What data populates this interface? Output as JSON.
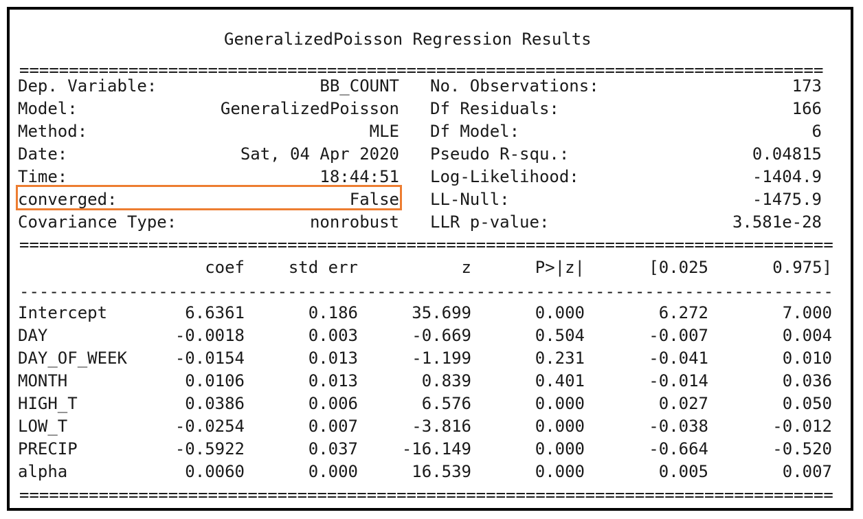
{
  "title": "GeneralizedPoisson Regression Results",
  "rules": {
    "double": "========================================================================================",
    "single": "----------------------------------------------------------------------------------------"
  },
  "summary": {
    "left": [
      {
        "label": "Dep. Variable:",
        "value": "BB_COUNT"
      },
      {
        "label": "Model:",
        "value": "GeneralizedPoisson"
      },
      {
        "label": "Method:",
        "value": "MLE"
      },
      {
        "label": "Date:",
        "value": "Sat, 04 Apr 2020"
      },
      {
        "label": "Time:",
        "value": "18:44:51"
      },
      {
        "label": "converged:",
        "value": "False"
      },
      {
        "label": "Covariance Type:",
        "value": "nonrobust"
      }
    ],
    "right": [
      {
        "label": "No. Observations:",
        "value": "173"
      },
      {
        "label": "Df Residuals:",
        "value": "166"
      },
      {
        "label": "Df Model:",
        "value": "6"
      },
      {
        "label": "Pseudo R-squ.:",
        "value": "0.04815"
      },
      {
        "label": "Log-Likelihood:",
        "value": "-1404.9"
      },
      {
        "label": "LL-Null:",
        "value": "-1475.9"
      },
      {
        "label": "LLR p-value:",
        "value": "3.581e-28"
      }
    ]
  },
  "coef_table": {
    "headers": [
      "coef",
      "std err",
      "z",
      "P>|z|",
      "[0.025",
      "0.975]"
    ],
    "rows": [
      {
        "name": "Intercept",
        "values": [
          "6.6361",
          "0.186",
          "35.699",
          "0.000",
          "6.272",
          "7.000"
        ]
      },
      {
        "name": "DAY",
        "values": [
          "-0.0018",
          "0.003",
          "-0.669",
          "0.504",
          "-0.007",
          "0.004"
        ]
      },
      {
        "name": "DAY_OF_WEEK",
        "values": [
          "-0.0154",
          "0.013",
          "-1.199",
          "0.231",
          "-0.041",
          "0.010"
        ]
      },
      {
        "name": "MONTH",
        "values": [
          "0.0106",
          "0.013",
          "0.839",
          "0.401",
          "-0.014",
          "0.036"
        ]
      },
      {
        "name": "HIGH_T",
        "values": [
          "0.0386",
          "0.006",
          "6.576",
          "0.000",
          "0.027",
          "0.050"
        ]
      },
      {
        "name": "LOW_T",
        "values": [
          "-0.0254",
          "0.007",
          "-3.816",
          "0.000",
          "-0.038",
          "-0.012"
        ]
      },
      {
        "name": "PRECIP",
        "values": [
          "-0.5922",
          "0.037",
          "-16.149",
          "0.000",
          "-0.664",
          "-0.520"
        ]
      },
      {
        "name": "alpha",
        "values": [
          "0.0060",
          "0.000",
          "16.539",
          "0.000",
          "0.005",
          "0.007"
        ]
      }
    ]
  },
  "colors": {
    "highlight": "#ed7d31",
    "border": "#000000",
    "text": "#1a1a1a"
  }
}
